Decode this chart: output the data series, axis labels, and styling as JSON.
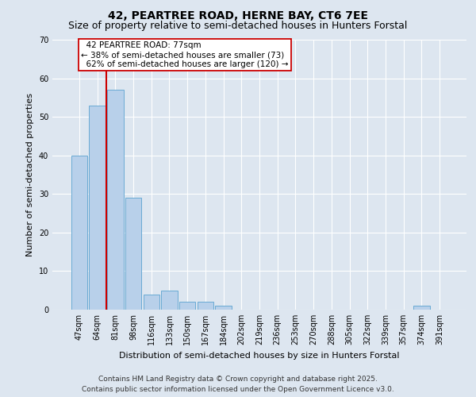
{
  "title": "42, PEARTREE ROAD, HERNE BAY, CT6 7EE",
  "subtitle": "Size of property relative to semi-detached houses in Hunters Forstal",
  "xlabel": "Distribution of semi-detached houses by size in Hunters Forstal",
  "ylabel": "Number of semi-detached properties",
  "categories": [
    "47sqm",
    "64sqm",
    "81sqm",
    "98sqm",
    "116sqm",
    "133sqm",
    "150sqm",
    "167sqm",
    "184sqm",
    "202sqm",
    "219sqm",
    "236sqm",
    "253sqm",
    "270sqm",
    "288sqm",
    "305sqm",
    "322sqm",
    "339sqm",
    "357sqm",
    "374sqm",
    "391sqm"
  ],
  "values": [
    40,
    53,
    57,
    29,
    4,
    5,
    2,
    2,
    1,
    0,
    0,
    0,
    0,
    0,
    0,
    0,
    0,
    0,
    0,
    1,
    0
  ],
  "bar_color": "#b8d0ea",
  "bar_edge_color": "#6aaad4",
  "background_color": "#dde6f0",
  "grid_color": "#ffffff",
  "property_line_x": 1.5,
  "property_label": "42 PEARTREE ROAD: 77sqm",
  "smaller_pct": "38% of semi-detached houses are smaller (73)",
  "larger_pct": "62% of semi-detached houses are larger (120)",
  "annotation_box_color": "#cc0000",
  "ylim": [
    0,
    70
  ],
  "yticks": [
    0,
    10,
    20,
    30,
    40,
    50,
    60,
    70
  ],
  "footer_line1": "Contains HM Land Registry data © Crown copyright and database right 2025.",
  "footer_line2": "Contains public sector information licensed under the Open Government Licence v3.0.",
  "title_fontsize": 10,
  "subtitle_fontsize": 9,
  "axis_label_fontsize": 8,
  "tick_fontsize": 7,
  "footer_fontsize": 6.5,
  "annotation_fontsize": 7.5
}
